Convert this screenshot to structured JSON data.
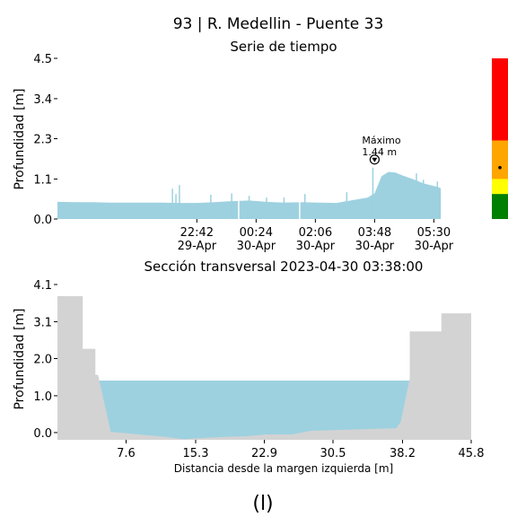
{
  "figure": {
    "suptitle": "93 | R. Medellin - Puente 33",
    "caption": "(l)"
  },
  "colors": {
    "water": "#9dd1e0",
    "terrain": "#d3d3d3",
    "red": "#ff0000",
    "orange": "#ffa500",
    "yellow": "#ffff00",
    "green": "#008000"
  },
  "chart_data": [
    {
      "type": "area",
      "title": "Serie de tiempo",
      "ylabel": "Profundidad [m]",
      "xlabel": "",
      "ylim": [
        0,
        4.5
      ],
      "yticks": [
        "0.0",
        "1.1",
        "2.3",
        "3.4",
        "4.5"
      ],
      "ytick_values": [
        0,
        1.12,
        2.25,
        3.37,
        4.5
      ],
      "xlim_hours": [
        0,
        12
      ],
      "xticks": [
        {
          "hour": 4.0,
          "time": "22:42",
          "date": "29-Apr"
        },
        {
          "hour": 5.7,
          "time": "00:24",
          "date": "30-Apr"
        },
        {
          "hour": 7.4,
          "time": "02:06",
          "date": "30-Apr"
        },
        {
          "hour": 9.1,
          "time": "03:48",
          "date": "30-Apr"
        },
        {
          "hour": 10.8,
          "time": "05:30",
          "date": "30-Apr"
        }
      ],
      "series": [
        {
          "x": [
            0.0,
            0.5,
            1.0,
            1.5,
            2.0,
            2.5,
            3.0,
            3.5,
            4.0,
            4.5,
            5.0,
            5.5,
            6.0,
            6.5,
            7.0,
            7.5,
            8.0,
            8.3,
            8.6,
            8.9,
            9.1,
            9.3,
            9.5,
            9.7,
            9.9,
            10.1,
            10.3,
            10.5,
            10.7,
            10.9,
            11.0
          ],
          "y": [
            0.48,
            0.47,
            0.47,
            0.46,
            0.46,
            0.46,
            0.46,
            0.45,
            0.45,
            0.47,
            0.5,
            0.52,
            0.48,
            0.46,
            0.47,
            0.46,
            0.45,
            0.5,
            0.55,
            0.6,
            0.72,
            1.2,
            1.32,
            1.3,
            1.22,
            1.15,
            1.08,
            1.0,
            0.95,
            0.9,
            0.86
          ]
        }
      ],
      "spikes": [
        {
          "x": 3.3,
          "y": 0.85
        },
        {
          "x": 3.4,
          "y": 0.7
        },
        {
          "x": 3.5,
          "y": 0.95
        },
        {
          "x": 4.4,
          "y": 0.68
        },
        {
          "x": 5.0,
          "y": 0.72
        },
        {
          "x": 5.5,
          "y": 0.65
        },
        {
          "x": 6.0,
          "y": 0.6
        },
        {
          "x": 6.5,
          "y": 0.6
        },
        {
          "x": 7.1,
          "y": 0.7
        },
        {
          "x": 8.3,
          "y": 0.75
        },
        {
          "x": 9.05,
          "y": 1.44
        },
        {
          "x": 10.3,
          "y": 1.28
        },
        {
          "x": 10.5,
          "y": 1.1
        },
        {
          "x": 10.9,
          "y": 1.05
        }
      ],
      "gaps": [
        5.2,
        6.95
      ],
      "max_annotation": {
        "label": "Máximo",
        "value_text": "1.44 m",
        "x": 9.1,
        "y": 1.44
      },
      "thresholds": [
        {
          "color": "red",
          "from": 2.2,
          "to": 4.5
        },
        {
          "color": "orange",
          "from": 1.12,
          "to": 2.2
        },
        {
          "color": "yellow",
          "from": 0.7,
          "to": 1.12
        },
        {
          "color": "green",
          "from": 0.0,
          "to": 0.7
        }
      ]
    },
    {
      "type": "area",
      "title": "Sección transversal 2023-04-30 03:38:00",
      "xlabel": "Distancia desde la margen izquierda [m]",
      "ylabel": "Profundidad [m]",
      "xlim": [
        0,
        45.8
      ],
      "ylim": [
        -0.2,
        4.1
      ],
      "xticks": [
        "7.6",
        "15.3",
        "22.9",
        "30.5",
        "38.2",
        "45.8"
      ],
      "xtick_values": [
        7.6,
        15.3,
        22.9,
        30.5,
        38.2,
        45.8
      ],
      "yticks": [
        "0.0",
        "1.0",
        "2.0",
        "3.1",
        "4.1"
      ],
      "ytick_values": [
        0,
        1.02,
        2.05,
        3.07,
        4.1
      ],
      "water_level": 1.44,
      "terrain": {
        "x": [
          0,
          2.8,
          2.8,
          4.2,
          4.2,
          4.5,
          5.9,
          12.0,
          14.0,
          16.0,
          18.5,
          21.0,
          23.0,
          26.0,
          28.0,
          37.5,
          38.0,
          39.0,
          39.0,
          42.5,
          42.5,
          45.8,
          45.8
        ],
        "y": [
          3.78,
          3.78,
          2.32,
          2.32,
          1.6,
          1.6,
          0.02,
          -0.12,
          -0.18,
          -0.15,
          -0.12,
          -0.1,
          -0.05,
          -0.05,
          0.05,
          0.12,
          0.3,
          1.5,
          2.8,
          2.8,
          3.3,
          3.3,
          -0.2
        ]
      }
    }
  ]
}
